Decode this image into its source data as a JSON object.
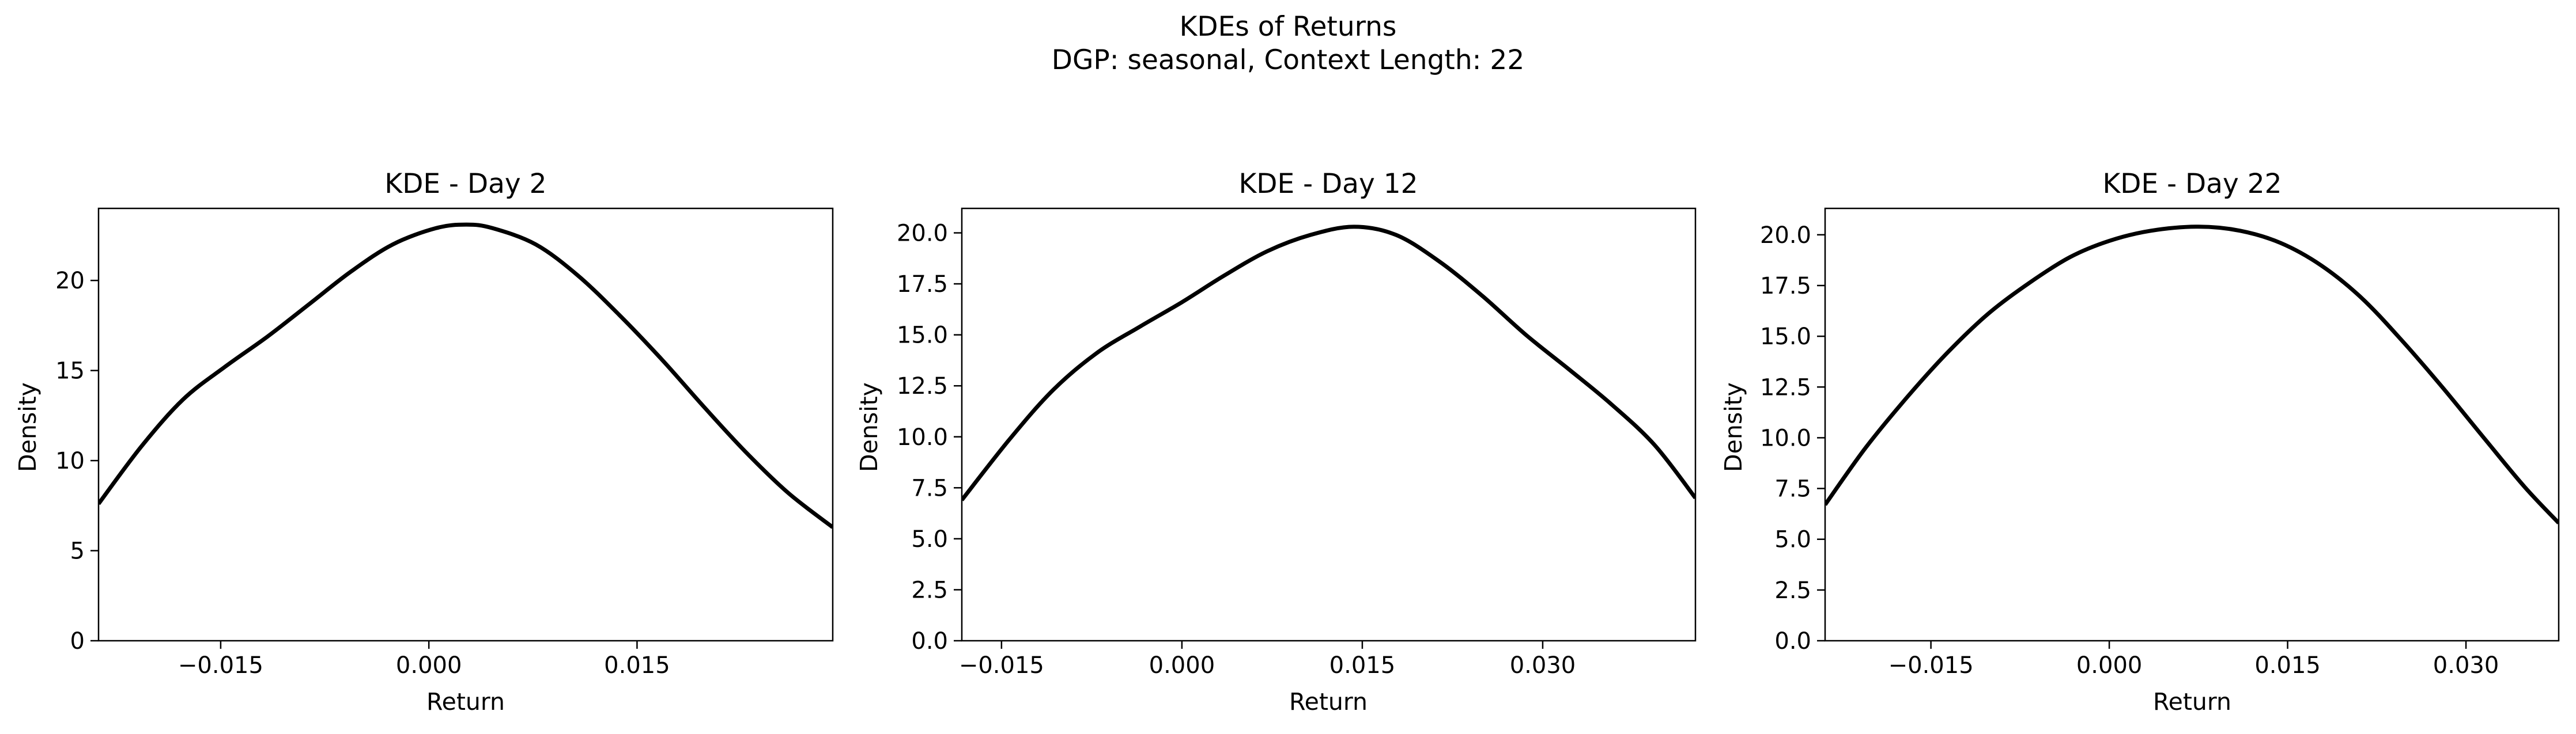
{
  "figure": {
    "suptitle_line1": "KDEs of Returns",
    "suptitle_line2": "DGP: seasonal, Context Length: 22"
  },
  "chart_data": [
    {
      "type": "line",
      "title": "KDE - Day 2",
      "xlabel": "Return",
      "ylabel": "Density",
      "xlim": [
        -0.0238,
        0.0291
      ],
      "ylim": [
        0,
        24
      ],
      "xticks": [
        -0.015,
        0.0,
        0.015
      ],
      "xtick_labels": [
        "−0.015",
        "0.000",
        "0.015"
      ],
      "yticks": [
        0,
        5,
        10,
        15,
        20
      ],
      "ytick_labels": [
        "0",
        "5",
        "10",
        "15",
        "20"
      ],
      "grid": false,
      "series": [
        {
          "color": "#000000",
          "x": [
            -0.0238,
            -0.0207,
            -0.0177,
            -0.0147,
            -0.0116,
            -0.0086,
            -0.0056,
            -0.0026,
            0.0005,
            0.0027,
            0.0046,
            0.0077,
            0.0107,
            0.0137,
            0.0168,
            0.0198,
            0.0228,
            0.0259,
            0.0291
          ],
          "y": [
            7.6,
            10.8,
            13.4,
            15.2,
            16.9,
            18.7,
            20.5,
            22.0,
            22.9,
            23.1,
            22.9,
            22.0,
            20.3,
            18.1,
            15.6,
            13.0,
            10.5,
            8.2,
            6.3
          ]
        }
      ]
    },
    {
      "type": "line",
      "title": "KDE - Day 12",
      "xlabel": "Return",
      "ylabel": "Density",
      "xlim": [
        -0.0183,
        0.0427
      ],
      "ylim": [
        0,
        21.2
      ],
      "xticks": [
        -0.015,
        0.0,
        0.015,
        0.03
      ],
      "xtick_labels": [
        "−0.015",
        "0.000",
        "0.015",
        "0.030"
      ],
      "yticks": [
        0,
        2.5,
        5,
        7.5,
        10,
        12.5,
        15,
        17.5,
        20
      ],
      "ytick_labels": [
        "0.0",
        "2.5",
        "5.0",
        "7.5",
        "10.0",
        "12.5",
        "15.0",
        "17.5",
        "20.0"
      ],
      "grid": false,
      "series": [
        {
          "color": "#000000",
          "x": [
            -0.0183,
            -0.0143,
            -0.0107,
            -0.0071,
            -0.0035,
            0.0,
            0.0035,
            0.0071,
            0.0107,
            0.0143,
            0.0178,
            0.0214,
            0.025,
            0.0286,
            0.0322,
            0.0357,
            0.0393,
            0.0427
          ],
          "y": [
            6.9,
            9.9,
            12.3,
            14.1,
            15.4,
            16.6,
            17.9,
            19.1,
            19.9,
            20.3,
            19.9,
            18.6,
            16.9,
            15.0,
            13.3,
            11.6,
            9.6,
            7.0
          ]
        }
      ]
    },
    {
      "type": "line",
      "title": "KDE - Day 22",
      "xlabel": "Return",
      "ylabel": "Density",
      "xlim": [
        -0.0239,
        0.0378
      ],
      "ylim": [
        0,
        21.3
      ],
      "xticks": [
        -0.015,
        0.0,
        0.015,
        0.03
      ],
      "xtick_labels": [
        "−0.015",
        "0.000",
        "0.015",
        "0.030"
      ],
      "yticks": [
        0,
        2.5,
        5,
        7.5,
        10,
        12.5,
        15,
        17.5,
        20
      ],
      "ytick_labels": [
        "0.0",
        "2.5",
        "5.0",
        "7.5",
        "10.0",
        "12.5",
        "15.0",
        "17.5",
        "20.0"
      ],
      "grid": false,
      "series": [
        {
          "color": "#000000",
          "x": [
            -0.0239,
            -0.0205,
            -0.017,
            -0.0136,
            -0.0102,
            -0.0068,
            -0.0033,
            0.0,
            0.0035,
            0.0075,
            0.011,
            0.0144,
            0.0178,
            0.0212,
            0.0246,
            0.028,
            0.0315,
            0.0349,
            0.0378
          ],
          "y": [
            6.7,
            9.5,
            12.0,
            14.2,
            16.1,
            17.6,
            18.9,
            19.7,
            20.2,
            20.4,
            20.2,
            19.6,
            18.5,
            16.9,
            14.8,
            12.5,
            10.0,
            7.6,
            5.8
          ]
        }
      ]
    }
  ]
}
